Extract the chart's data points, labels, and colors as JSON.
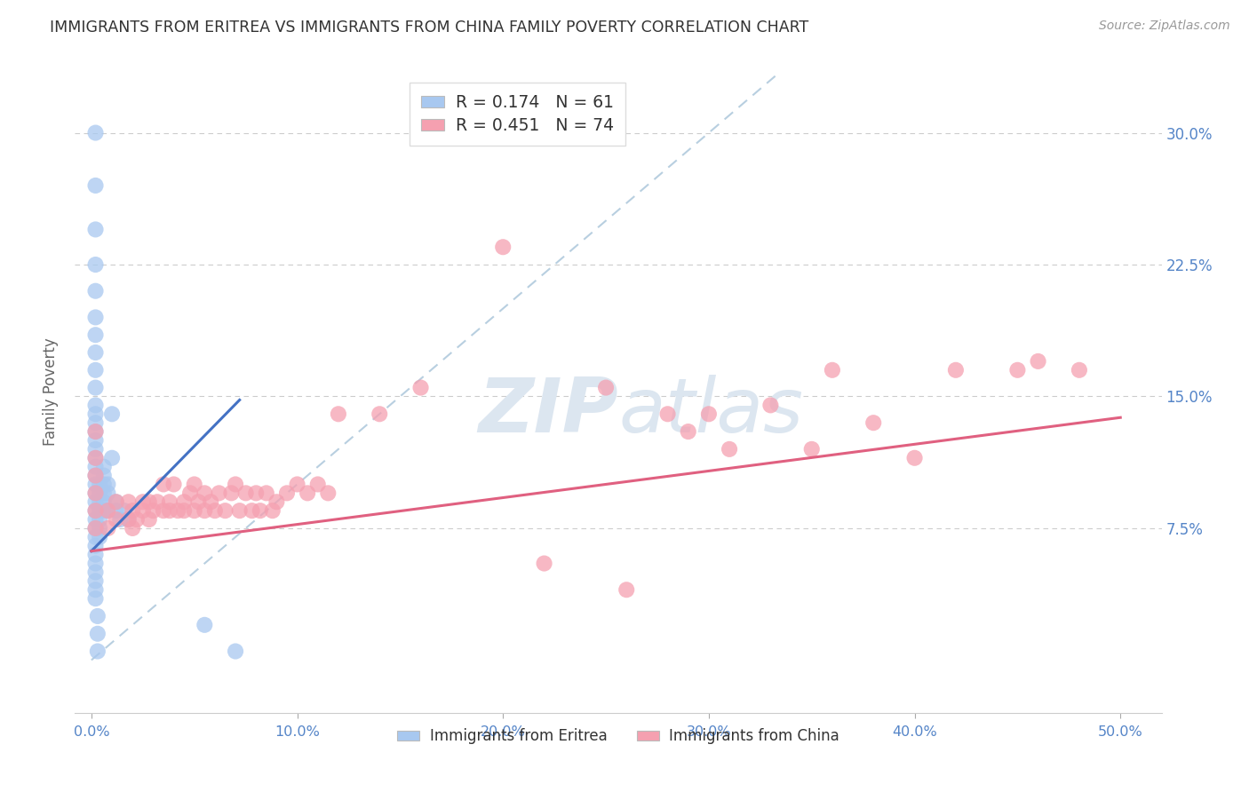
{
  "title": "IMMIGRANTS FROM ERITREA VS IMMIGRANTS FROM CHINA FAMILY POVERTY CORRELATION CHART",
  "source": "Source: ZipAtlas.com",
  "ylabel_label": "Family Poverty",
  "x_ticks": [
    0.0,
    0.1,
    0.2,
    0.3,
    0.4,
    0.5
  ],
  "x_tick_labels": [
    "0.0%",
    "10.0%",
    "20.0%",
    "30.0%",
    "40.0%",
    "50.0%"
  ],
  "y_ticks": [
    0.0,
    0.075,
    0.15,
    0.225,
    0.3
  ],
  "y_tick_labels": [
    "",
    "7.5%",
    "15.0%",
    "22.5%",
    "30.0%"
  ],
  "xlim": [
    -0.008,
    0.52
  ],
  "ylim": [
    -0.03,
    0.335
  ],
  "legend_eritrea_r": "0.174",
  "legend_eritrea_n": "61",
  "legend_china_r": "0.451",
  "legend_china_n": "74",
  "color_eritrea": "#a8c8f0",
  "color_china": "#f5a0b0",
  "color_eritrea_line": "#4472c4",
  "color_china_line": "#e06080",
  "color_diag_line": "#b8cfe0",
  "color_axis_labels": "#5585c8",
  "color_title": "#333333",
  "color_watermark": "#dce6f0",
  "eritrea_x": [
    0.002,
    0.002,
    0.002,
    0.002,
    0.002,
    0.002,
    0.002,
    0.002,
    0.002,
    0.002,
    0.002,
    0.002,
    0.002,
    0.002,
    0.002,
    0.002,
    0.002,
    0.002,
    0.002,
    0.002,
    0.002,
    0.002,
    0.002,
    0.004,
    0.004,
    0.004,
    0.004,
    0.004,
    0.004,
    0.004,
    0.006,
    0.006,
    0.006,
    0.006,
    0.006,
    0.006,
    0.008,
    0.008,
    0.008,
    0.01,
    0.01,
    0.012,
    0.012,
    0.014,
    0.016,
    0.018,
    0.002,
    0.002,
    0.002,
    0.002,
    0.002,
    0.002,
    0.002,
    0.002,
    0.002,
    0.003,
    0.003,
    0.003,
    0.055,
    0.07,
    0.002
  ],
  "eritrea_y": [
    0.08,
    0.085,
    0.09,
    0.095,
    0.1,
    0.105,
    0.11,
    0.115,
    0.12,
    0.125,
    0.13,
    0.135,
    0.14,
    0.145,
    0.075,
    0.07,
    0.065,
    0.06,
    0.055,
    0.05,
    0.045,
    0.04,
    0.035,
    0.1,
    0.095,
    0.09,
    0.085,
    0.08,
    0.075,
    0.07,
    0.11,
    0.105,
    0.1,
    0.095,
    0.09,
    0.085,
    0.1,
    0.095,
    0.085,
    0.115,
    0.14,
    0.085,
    0.09,
    0.08,
    0.085,
    0.08,
    0.27,
    0.245,
    0.225,
    0.21,
    0.195,
    0.185,
    0.175,
    0.165,
    0.155,
    0.025,
    0.015,
    0.005,
    0.02,
    0.005,
    0.3
  ],
  "china_x": [
    0.002,
    0.002,
    0.002,
    0.002,
    0.002,
    0.002,
    0.008,
    0.008,
    0.012,
    0.012,
    0.018,
    0.018,
    0.02,
    0.02,
    0.022,
    0.025,
    0.025,
    0.028,
    0.028,
    0.03,
    0.032,
    0.035,
    0.035,
    0.038,
    0.038,
    0.04,
    0.042,
    0.045,
    0.045,
    0.048,
    0.05,
    0.05,
    0.052,
    0.055,
    0.055,
    0.058,
    0.06,
    0.062,
    0.065,
    0.068,
    0.07,
    0.072,
    0.075,
    0.078,
    0.08,
    0.082,
    0.085,
    0.088,
    0.09,
    0.095,
    0.1,
    0.105,
    0.11,
    0.115,
    0.16,
    0.2,
    0.22,
    0.25,
    0.26,
    0.28,
    0.29,
    0.3,
    0.31,
    0.33,
    0.35,
    0.36,
    0.38,
    0.4,
    0.42,
    0.45,
    0.46,
    0.48,
    0.12,
    0.14
  ],
  "china_y": [
    0.13,
    0.115,
    0.105,
    0.095,
    0.085,
    0.075,
    0.075,
    0.085,
    0.08,
    0.09,
    0.08,
    0.09,
    0.075,
    0.085,
    0.08,
    0.085,
    0.09,
    0.08,
    0.09,
    0.085,
    0.09,
    0.085,
    0.1,
    0.09,
    0.085,
    0.1,
    0.085,
    0.09,
    0.085,
    0.095,
    0.1,
    0.085,
    0.09,
    0.085,
    0.095,
    0.09,
    0.085,
    0.095,
    0.085,
    0.095,
    0.1,
    0.085,
    0.095,
    0.085,
    0.095,
    0.085,
    0.095,
    0.085,
    0.09,
    0.095,
    0.1,
    0.095,
    0.1,
    0.095,
    0.155,
    0.235,
    0.055,
    0.155,
    0.04,
    0.14,
    0.13,
    0.14,
    0.12,
    0.145,
    0.12,
    0.165,
    0.135,
    0.115,
    0.165,
    0.165,
    0.17,
    0.165,
    0.14,
    0.14
  ],
  "eritrea_line_x": [
    0.0,
    0.072
  ],
  "eritrea_line_y": [
    0.062,
    0.148
  ],
  "china_line_x": [
    0.0,
    0.5
  ],
  "china_line_y": [
    0.062,
    0.138
  ],
  "diag_line_x": [
    0.0,
    0.335
  ],
  "diag_line_y": [
    0.0,
    0.335
  ]
}
